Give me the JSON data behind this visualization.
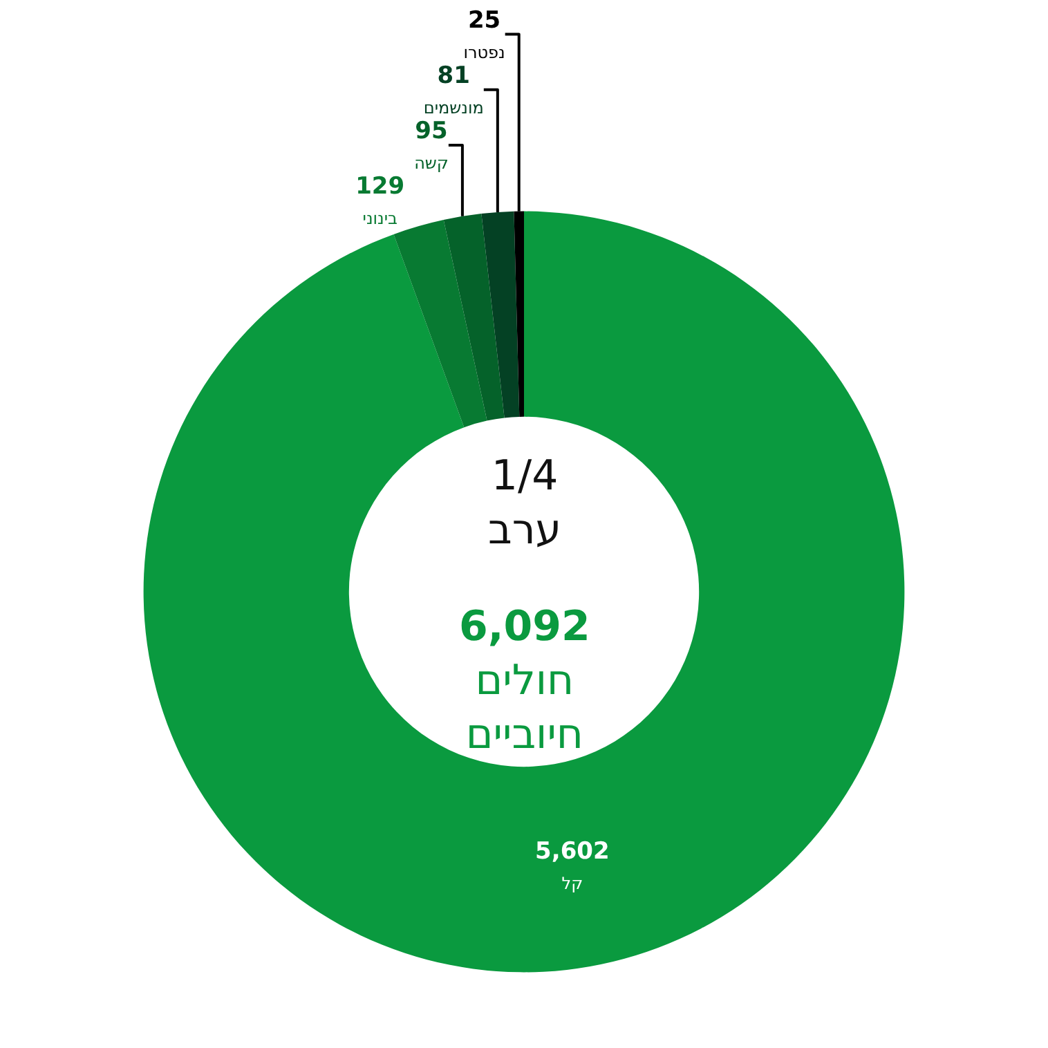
{
  "chart_data": {
    "type": "donut",
    "title": "1/4\nערב",
    "categories": [
      "קל",
      "בינוני",
      "קשה",
      "מונשמים",
      "נפטרו"
    ],
    "values": [
      5602,
      129,
      95,
      81,
      25
    ],
    "value_labels": [
      "5,602",
      "129",
      "95",
      "81",
      "25"
    ],
    "colors": [
      "#0a9a3f",
      "#087a32",
      "#05622a",
      "#044124",
      "#000000"
    ],
    "annotations": [
      "6,092\nחולים\nחיוביים"
    ],
    "legend": false
  }
}
